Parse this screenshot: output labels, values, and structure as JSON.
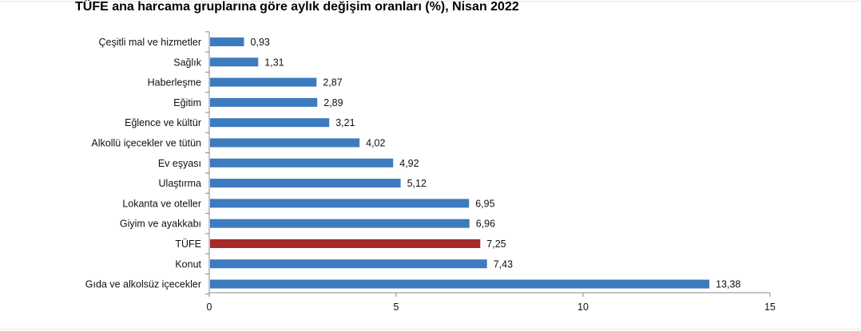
{
  "chart_data": {
    "type": "bar",
    "orientation": "horizontal",
    "title": "TÜFE ana harcama gruplarına göre aylık değişim oranları (%), Nisan 2022",
    "xlabel": "",
    "ylabel": "",
    "xlim": [
      0,
      15
    ],
    "xticks": [
      0,
      5,
      10,
      15
    ],
    "grid": false,
    "categories": [
      "Çeşitli mal ve hizmetler",
      "Sağlık",
      "Haberleşme",
      "Eğitim",
      "Eğlence ve kültür",
      "Alkollü içecekler ve tütün",
      "Ev eşyası",
      "Ulaştırma",
      "Lokanta ve oteller",
      "Giyim ve ayakkabı",
      "TÜFE",
      "Konut",
      "Gıda ve alkolsüz içecekler"
    ],
    "values": [
      0.93,
      1.31,
      2.87,
      2.89,
      3.21,
      4.02,
      4.92,
      5.12,
      6.95,
      6.96,
      7.25,
      7.43,
      13.38
    ],
    "value_labels": [
      "0,93",
      "1,31",
      "2,87",
      "2,89",
      "3,21",
      "4,02",
      "4,92",
      "5,12",
      "6,95",
      "6,96",
      "7,25",
      "7,43",
      "13,38"
    ],
    "colors": {
      "default": "#3d7bbf",
      "highlight": "#a52a2a",
      "highlight_category": "TÜFE",
      "axis": "#888888"
    }
  }
}
